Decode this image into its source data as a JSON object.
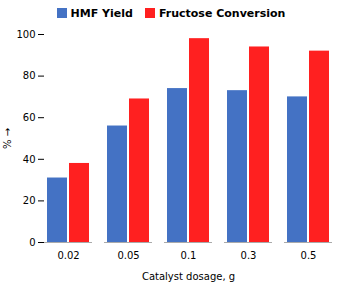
{
  "chart_data": {
    "type": "bar",
    "categories": [
      "0.02",
      "0.05",
      "0.1",
      "0.3",
      "0.5"
    ],
    "series": [
      {
        "name": "HMF Yield",
        "color": "#4472C4",
        "values": [
          31,
          56,
          74,
          73,
          70
        ]
      },
      {
        "name": "Fructose Conversion",
        "color": "#FF2020",
        "values": [
          38,
          69,
          98,
          94,
          92
        ]
      }
    ],
    "xlabel": "Catalyst dosage, g",
    "ylabel": "%",
    "ylim": [
      0,
      100
    ],
    "yticks": [
      0,
      20,
      40,
      60,
      80,
      100
    ],
    "grid": false,
    "legend": "top"
  }
}
